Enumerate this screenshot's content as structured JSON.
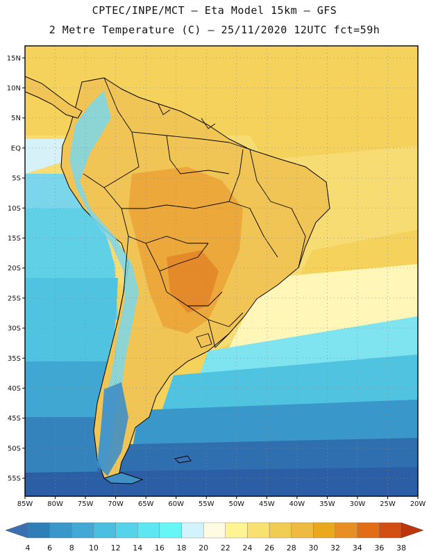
{
  "header": {
    "line1": "CPTEC/INPE/MCT –  Eta Model 15km – GFS",
    "line2": "2 Metre Temperature (C) – 25/11/2020 12UTC fct=59h"
  },
  "map": {
    "lat_labels": [
      "15N",
      "10N",
      "5N",
      "EQ",
      "5S",
      "10S",
      "15S",
      "20S",
      "25S",
      "30S",
      "35S",
      "40S",
      "45S",
      "50S",
      "55S"
    ],
    "lon_labels": [
      "85W",
      "80W",
      "75W",
      "70W",
      "65W",
      "60W",
      "55W",
      "50W",
      "45W",
      "40W",
      "35W",
      "30W",
      "25W",
      "20W"
    ],
    "lon_range": [
      -85,
      -20
    ],
    "lat_range": [
      -58,
      17
    ],
    "region": "South America"
  },
  "colorbar": {
    "labels": [
      "4",
      "6",
      "8",
      "10",
      "12",
      "14",
      "16",
      "18",
      "20",
      "22",
      "24",
      "26",
      "28",
      "30",
      "32",
      "34",
      "36",
      "38"
    ],
    "colors": [
      "#3a6fb2",
      "#2e7fb8",
      "#3a97c9",
      "#41a9d3",
      "#4bbfe0",
      "#55d3ea",
      "#5ee6f3",
      "#66f6f6",
      "#d2f3fb",
      "#fffbe2",
      "#fff494",
      "#f8e170",
      "#f1cc52",
      "#eeba42",
      "#eaa81d",
      "#e88f23",
      "#e26d17",
      "#d24d12",
      "#bf350a"
    ]
  },
  "colors": {
    "ocean_warm": "#f3cc52",
    "ocean_tropical": "#f5d566",
    "ocean_mid": "#fff3a3",
    "land_hot": "#eb9e2b",
    "land_warm": "#f1c04b",
    "ocean_cold": "#3d8fc6",
    "ocean_coldest": "#2f62a8",
    "border": "#000000"
  }
}
